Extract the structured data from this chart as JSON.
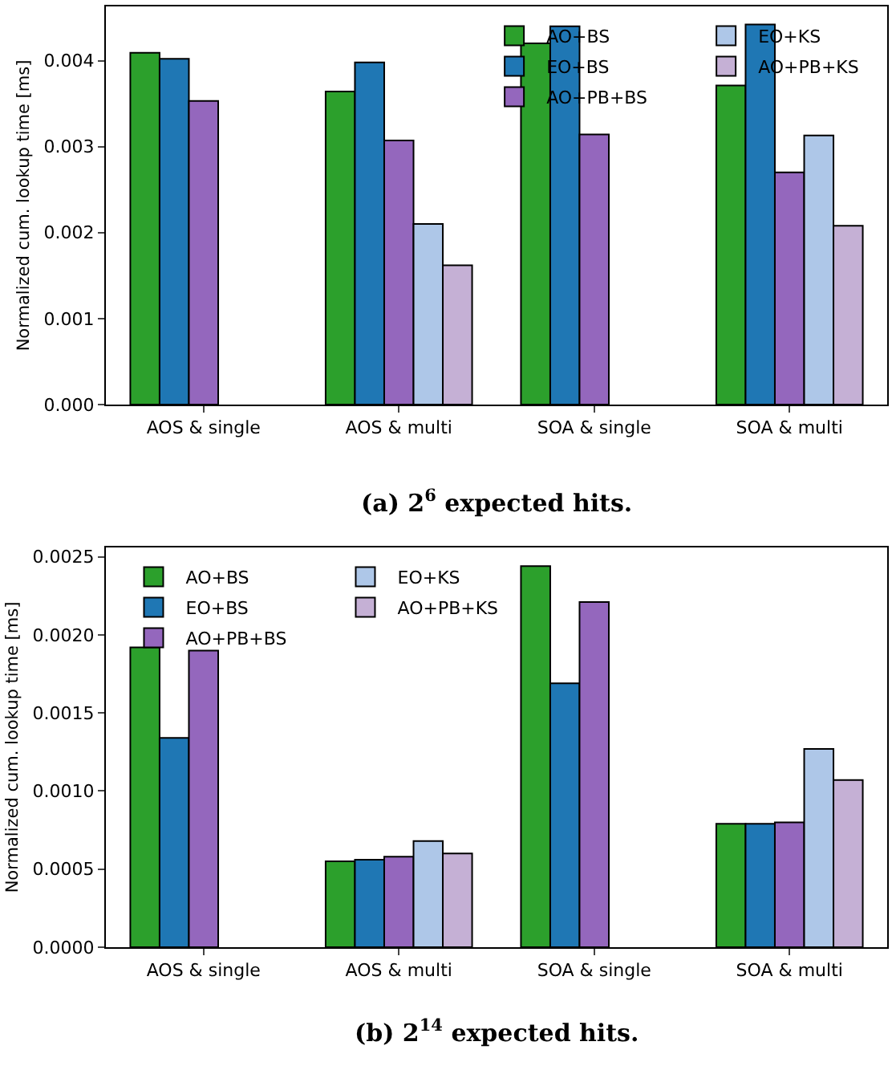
{
  "chart_data": [
    {
      "type": "bar",
      "title": "(a) 2$^{6}$ expected hits.",
      "ylabel": "Normalized cum. lookup time [ms]",
      "categories": [
        "AOS & single",
        "AOS & multi",
        "SOA & single",
        "SOA & multi"
      ],
      "series": [
        {
          "name": "AO+BS",
          "color": "#2ca02c",
          "values": [
            0.00409,
            0.00364,
            0.0042,
            0.00371
          ]
        },
        {
          "name": "EO+BS",
          "color": "#1f77b4",
          "values": [
            0.00402,
            0.00398,
            0.0044,
            0.00442
          ]
        },
        {
          "name": "AO+PB+BS",
          "color": "#9467bd",
          "values": [
            0.00353,
            0.00307,
            0.00314,
            0.0027
          ]
        },
        {
          "name": "EO+KS",
          "color": "#aec7e8",
          "values": [
            null,
            0.0021,
            null,
            0.00313
          ]
        },
        {
          "name": "AO+PB+KS",
          "color": "#c5b0d5",
          "values": [
            null,
            0.00162,
            null,
            0.00208
          ]
        }
      ],
      "ylim": [
        0,
        0.00463
      ],
      "yticks": [
        {
          "value": 0,
          "label": "0.000"
        },
        {
          "value": 0.001,
          "label": "0.001"
        },
        {
          "value": 0.002,
          "label": "0.002"
        },
        {
          "value": 0.003,
          "label": "0.003"
        },
        {
          "value": 0.004,
          "label": "0.004"
        }
      ],
      "grid": false,
      "legend": "top right"
    },
    {
      "type": "bar",
      "title": "(b) 2$^{14}$ expected hits.",
      "ylabel": "Normalized cum. lookup time [ms]",
      "categories": [
        "AOS & single",
        "AOS & multi",
        "SOA & single",
        "SOA & multi"
      ],
      "series": [
        {
          "name": "AO+BS",
          "color": "#2ca02c",
          "values": [
            0.00192,
            0.00055,
            0.00244,
            0.00079
          ]
        },
        {
          "name": "EO+BS",
          "color": "#1f77b4",
          "values": [
            0.00134,
            0.00056,
            0.00169,
            0.00079
          ]
        },
        {
          "name": "AO+PB+BS",
          "color": "#9467bd",
          "values": [
            0.0019,
            0.00058,
            0.00221,
            0.0008
          ]
        },
        {
          "name": "EO+KS",
          "color": "#aec7e8",
          "values": [
            null,
            0.00068,
            null,
            0.00127
          ]
        },
        {
          "name": "AO+PB+KS",
          "color": "#c5b0d5",
          "values": [
            null,
            0.0006,
            null,
            0.00107
          ]
        }
      ],
      "ylim": [
        0,
        0.00256
      ],
      "yticks": [
        {
          "value": 0,
          "label": "0.0000"
        },
        {
          "value": 0.0005,
          "label": "0.0005"
        },
        {
          "value": 0.001,
          "label": "0.0010"
        },
        {
          "value": 0.0015,
          "label": "0.0015"
        },
        {
          "value": 0.002,
          "label": "0.0020"
        },
        {
          "value": 0.0025,
          "label": "0.0025"
        }
      ],
      "grid": false,
      "legend": "top left"
    }
  ]
}
